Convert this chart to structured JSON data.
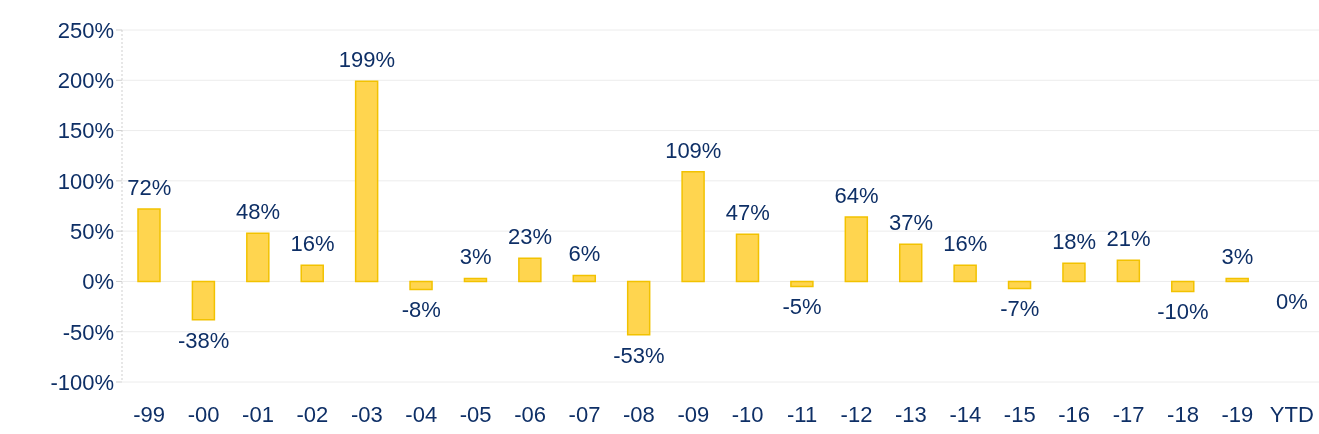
{
  "chart_data": {
    "type": "bar",
    "categories": [
      "-99",
      "-00",
      "-01",
      "-02",
      "-03",
      "-04",
      "-05",
      "-06",
      "-07",
      "-08",
      "-09",
      "-10",
      "-11",
      "-12",
      "-13",
      "-14",
      "-15",
      "-16",
      "-17",
      "-18",
      "-19",
      "YTD"
    ],
    "values": [
      72,
      -38,
      48,
      16,
      199,
      -8,
      3,
      23,
      6,
      -53,
      109,
      47,
      -5,
      64,
      37,
      16,
      -7,
      18,
      21,
      -10,
      3,
      0
    ],
    "value_labels": [
      "72%",
      "-38%",
      "48%",
      "16%",
      "199%",
      "-8%",
      "3%",
      "23%",
      "6%",
      "-53%",
      "109%",
      "47%",
      "-5%",
      "64%",
      "37%",
      "16%",
      "-7%",
      "18%",
      "21%",
      "-10%",
      "3%",
      "0%"
    ],
    "color": "#ffd54f",
    "ylim": [
      -100,
      250
    ],
    "yticks": [
      {
        "value": -100,
        "label": "-100%"
      },
      {
        "value": -50,
        "label": "-50%"
      },
      {
        "value": 0,
        "label": "0%"
      },
      {
        "value": 50,
        "label": "50%"
      },
      {
        "value": 100,
        "label": "100%"
      },
      {
        "value": 150,
        "label": "150%"
      },
      {
        "value": 200,
        "label": "200%"
      },
      {
        "value": 250,
        "label": "250%"
      }
    ],
    "grid": "y"
  }
}
